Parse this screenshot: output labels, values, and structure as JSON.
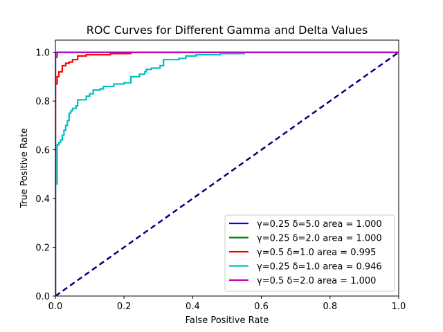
{
  "chart_data": {
    "type": "line",
    "title": "ROC Curves for Different Gamma and Delta Values",
    "xlabel": "False Positive Rate",
    "ylabel": "True Positive Rate",
    "xlim": [
      0.0,
      1.0
    ],
    "ylim": [
      0.0,
      1.05
    ],
    "x_ticks": [
      0.0,
      0.2,
      0.4,
      0.6,
      0.8,
      1.0
    ],
    "x_tick_labels": [
      "0.0",
      "0.2",
      "0.4",
      "0.6",
      "0.8",
      "1.0"
    ],
    "y_ticks": [
      0.0,
      0.2,
      0.4,
      0.6,
      0.8,
      1.0
    ],
    "y_tick_labels": [
      "0.0",
      "0.2",
      "0.4",
      "0.6",
      "0.8",
      "1.0"
    ],
    "grid": false,
    "legend_position": "lower-right",
    "diagonal": {
      "name": "chance",
      "color": "#000080",
      "style": "dashed",
      "x": [
        0.0,
        1.0
      ],
      "y": [
        0.0,
        1.0
      ]
    },
    "series": [
      {
        "name": "γ=0.25 δ=5.0 area = 1.000",
        "color": "#0000ff",
        "x": [
          0.0,
          0.0,
          0.0,
          1.0
        ],
        "y": [
          0.0,
          0.98,
          1.0,
          1.0
        ]
      },
      {
        "name": "γ=0.25 δ=2.0 area = 1.000",
        "color": "#008000",
        "x": [
          0.0,
          0.0,
          1.0
        ],
        "y": [
          0.0,
          1.0,
          1.0
        ]
      },
      {
        "name": "γ=0.5 δ=1.0 area = 0.995",
        "color": "#ff0000",
        "x": [
          0.0,
          0.0,
          0.005,
          0.005,
          0.01,
          0.01,
          0.02,
          0.02,
          0.03,
          0.03,
          0.04,
          0.04,
          0.05,
          0.05,
          0.065,
          0.065,
          0.09,
          0.09,
          0.16,
          0.16,
          0.22,
          0.22,
          1.0
        ],
        "y": [
          0.0,
          0.87,
          0.87,
          0.9,
          0.9,
          0.92,
          0.92,
          0.945,
          0.945,
          0.955,
          0.955,
          0.96,
          0.96,
          0.97,
          0.97,
          0.985,
          0.985,
          0.99,
          0.99,
          0.995,
          0.995,
          1.0,
          1.0
        ]
      },
      {
        "name": "γ=0.25 δ=1.0 area = 0.946",
        "color": "#00bfbf",
        "x": [
          0.0,
          0.0,
          0.005,
          0.005,
          0.01,
          0.01,
          0.015,
          0.015,
          0.02,
          0.02,
          0.025,
          0.025,
          0.03,
          0.03,
          0.035,
          0.035,
          0.04,
          0.04,
          0.045,
          0.045,
          0.05,
          0.05,
          0.06,
          0.06,
          0.065,
          0.065,
          0.09,
          0.09,
          0.1,
          0.1,
          0.11,
          0.11,
          0.13,
          0.13,
          0.14,
          0.14,
          0.17,
          0.17,
          0.2,
          0.2,
          0.22,
          0.22,
          0.245,
          0.245,
          0.26,
          0.26,
          0.265,
          0.265,
          0.28,
          0.28,
          0.305,
          0.305,
          0.315,
          0.315,
          0.36,
          0.36,
          0.38,
          0.38,
          0.41,
          0.41,
          0.48,
          0.48,
          0.55,
          0.55,
          1.0
        ],
        "y": [
          0.0,
          0.46,
          0.46,
          0.62,
          0.62,
          0.63,
          0.63,
          0.64,
          0.64,
          0.66,
          0.66,
          0.68,
          0.68,
          0.7,
          0.7,
          0.72,
          0.72,
          0.75,
          0.75,
          0.76,
          0.76,
          0.77,
          0.77,
          0.78,
          0.78,
          0.805,
          0.805,
          0.82,
          0.82,
          0.83,
          0.83,
          0.845,
          0.845,
          0.85,
          0.85,
          0.86,
          0.86,
          0.87,
          0.87,
          0.875,
          0.875,
          0.9,
          0.9,
          0.91,
          0.91,
          0.92,
          0.92,
          0.93,
          0.93,
          0.935,
          0.935,
          0.945,
          0.945,
          0.97,
          0.97,
          0.975,
          0.975,
          0.985,
          0.985,
          0.99,
          0.99,
          0.995,
          0.995,
          1.0,
          1.0
        ]
      },
      {
        "name": "γ=0.5 δ=2.0 area = 1.000",
        "color": "#bf00bf",
        "x": [
          0.0,
          0.0,
          0.005,
          0.005,
          1.0
        ],
        "y": [
          0.0,
          0.98,
          0.98,
          1.0,
          1.0
        ]
      }
    ]
  }
}
